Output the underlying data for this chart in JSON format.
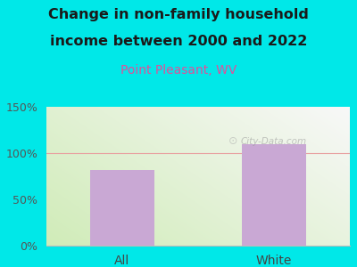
{
  "title_line1": "Change in non-family household",
  "title_line2": "income between 2000 and 2022",
  "subtitle": "Point Pleasant, WV",
  "categories": [
    "All",
    "White"
  ],
  "values": [
    82,
    110
  ],
  "bar_color": "#c9a8d4",
  "title_fontsize": 11.5,
  "subtitle_fontsize": 10,
  "subtitle_color": "#e0509a",
  "title_color": "#1a1a1a",
  "ylim": [
    0,
    150
  ],
  "yticks": [
    0,
    50,
    100,
    150
  ],
  "ytick_labels": [
    "0%",
    "50%",
    "100%",
    "150%"
  ],
  "bg_outer": "#00e8e8",
  "hline_color": "#e8a0a0",
  "hline_y": 100,
  "watermark": "City-Data.com",
  "bar_width": 0.42
}
